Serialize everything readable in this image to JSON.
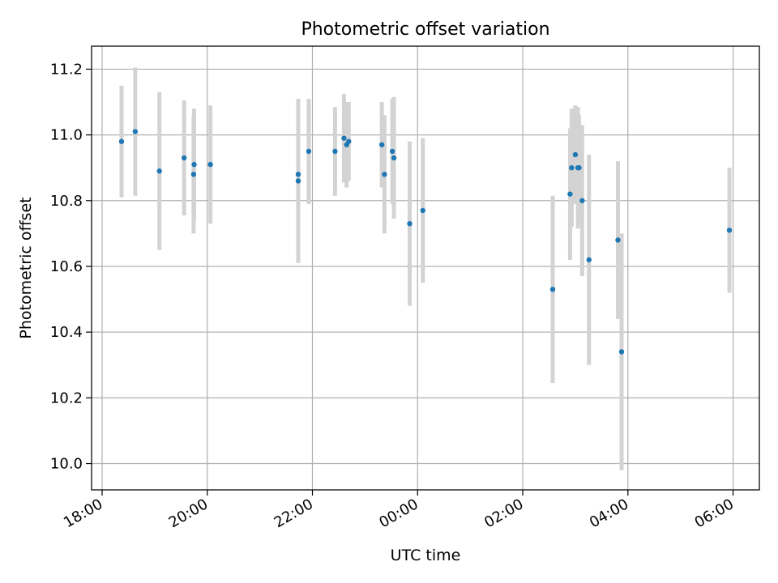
{
  "chart_data": {
    "type": "scatter",
    "title": "Photometric offset variation",
    "xlabel": "UTC time",
    "ylabel": "Photometric offset",
    "x_unit": "hours after 18:00 UTC",
    "xlim": [
      -0.2,
      12.5
    ],
    "ylim": [
      9.92,
      11.27
    ],
    "grid": true,
    "x_ticks": [
      {
        "value": 0,
        "label": "18:00"
      },
      {
        "value": 2,
        "label": "20:00"
      },
      {
        "value": 4,
        "label": "22:00"
      },
      {
        "value": 6,
        "label": "00:00"
      },
      {
        "value": 8,
        "label": "02:00"
      },
      {
        "value": 10,
        "label": "04:00"
      },
      {
        "value": 12,
        "label": "06:00"
      }
    ],
    "y_ticks": [
      {
        "value": 10.0,
        "label": "10.0"
      },
      {
        "value": 10.2,
        "label": "10.2"
      },
      {
        "value": 10.4,
        "label": "10.4"
      },
      {
        "value": 10.6,
        "label": "10.6"
      },
      {
        "value": 10.8,
        "label": "10.8"
      },
      {
        "value": 11.0,
        "label": "11.0"
      },
      {
        "value": 11.2,
        "label": "11.2"
      }
    ],
    "colors": {
      "point": "#1f77b4",
      "errorbar": "#d3d3d3",
      "grid": "#b0b0b0"
    },
    "points": [
      {
        "x": 0.37,
        "y": 10.98,
        "err": 0.17
      },
      {
        "x": 0.63,
        "y": 11.01,
        "err": 0.195
      },
      {
        "x": 1.09,
        "y": 10.89,
        "err": 0.24
      },
      {
        "x": 1.56,
        "y": 10.93,
        "err": 0.175
      },
      {
        "x": 1.74,
        "y": 10.88,
        "err": 0.18
      },
      {
        "x": 1.75,
        "y": 10.91,
        "err": 0.17
      },
      {
        "x": 2.06,
        "y": 10.91,
        "err": 0.18
      },
      {
        "x": 3.73,
        "y": 10.88,
        "err": 0.2
      },
      {
        "x": 3.73,
        "y": 10.86,
        "err": 0.25
      },
      {
        "x": 3.93,
        "y": 10.95,
        "err": 0.16
      },
      {
        "x": 4.43,
        "y": 10.95,
        "err": 0.135
      },
      {
        "x": 4.6,
        "y": 10.99,
        "err": 0.135
      },
      {
        "x": 4.65,
        "y": 10.97,
        "err": 0.13
      },
      {
        "x": 4.69,
        "y": 10.98,
        "err": 0.12
      },
      {
        "x": 5.32,
        "y": 10.97,
        "err": 0.13
      },
      {
        "x": 5.37,
        "y": 10.88,
        "err": 0.18
      },
      {
        "x": 5.52,
        "y": 10.95,
        "err": 0.16
      },
      {
        "x": 5.55,
        "y": 10.93,
        "err": 0.185
      },
      {
        "x": 5.85,
        "y": 10.73,
        "err": 0.25
      },
      {
        "x": 6.1,
        "y": 10.77,
        "err": 0.22
      },
      {
        "x": 8.57,
        "y": 10.53,
        "err": 0.285
      },
      {
        "x": 8.9,
        "y": 10.82,
        "err": 0.2
      },
      {
        "x": 8.93,
        "y": 10.9,
        "err": 0.18
      },
      {
        "x": 9.0,
        "y": 10.94,
        "err": 0.15
      },
      {
        "x": 9.05,
        "y": 10.9,
        "err": 0.185
      },
      {
        "x": 9.07,
        "y": 10.9,
        "err": 0.16
      },
      {
        "x": 9.13,
        "y": 10.8,
        "err": 0.23
      },
      {
        "x": 9.26,
        "y": 10.62,
        "err": 0.32
      },
      {
        "x": 9.81,
        "y": 10.68,
        "err": 0.24
      },
      {
        "x": 9.88,
        "y": 10.34,
        "err": 0.36
      },
      {
        "x": 11.93,
        "y": 10.71,
        "err": 0.19
      }
    ]
  }
}
